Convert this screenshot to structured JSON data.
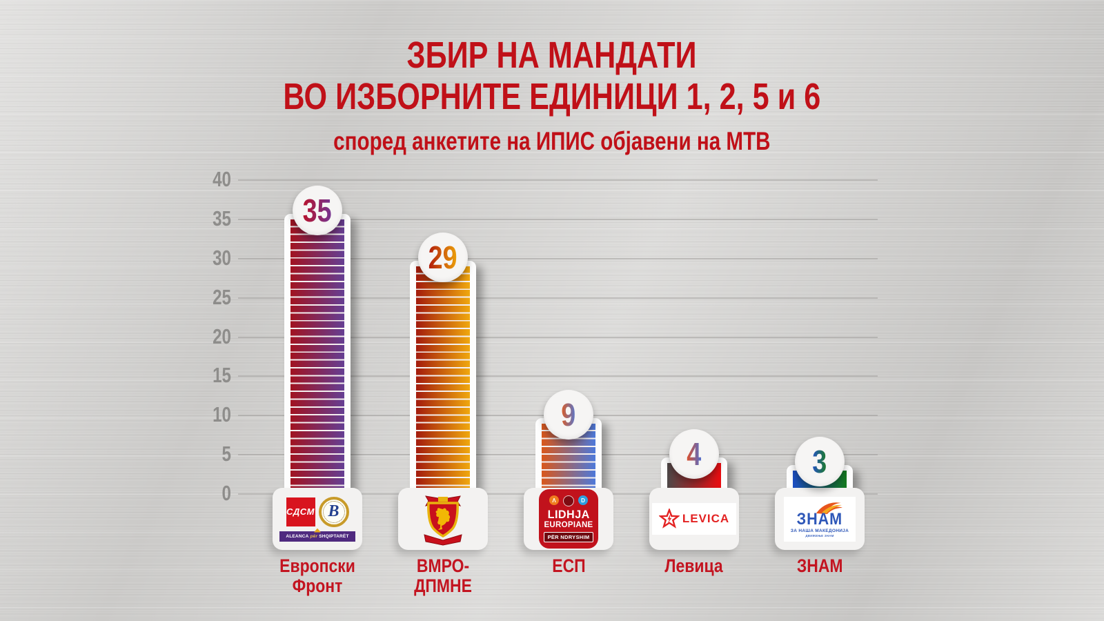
{
  "header": {
    "title_line1": "ЗБИР НА МАНДАТИ",
    "title_line2": "ВО ИЗБОРНИТЕ ЕДИНИЦИ 1, 2, 5 и 6",
    "subtitle": "според анкетите на ИПИС објавени на МТВ"
  },
  "axis": {
    "min": 0,
    "max": 40,
    "ticks": [
      40,
      35,
      30,
      25,
      20,
      15,
      10,
      5,
      0
    ]
  },
  "chart_data": {
    "type": "bar",
    "title": "ЗБИР НА МАНДАТИ ВО ИЗБОРНИТЕ ЕДИНИЦИ 1, 2, 5 и 6",
    "subtitle": "според анкетите на ИПИС објавени на МТВ",
    "categories": [
      "Европски Фронт",
      "ВМРО-ДПМНЕ",
      "ЕСП",
      "Левица",
      "ЗНАМ"
    ],
    "values": [
      35,
      29,
      9,
      4,
      3
    ],
    "xlabel": "",
    "ylabel": "",
    "ylim": [
      0,
      40
    ],
    "yticks": [
      0,
      5,
      10,
      15,
      20,
      25,
      30,
      35,
      40
    ],
    "grid": true,
    "legend": false,
    "bar_style": "one horizontal stripe per mandate, horizontal gradient left to right",
    "series_colors": [
      {
        "from": "#a11320",
        "to": "#653e93"
      },
      {
        "from": "#a31b0d",
        "to": "#f0a80e"
      },
      {
        "from": "#d9571b",
        "to": "#4d79da"
      },
      {
        "from": "#4d4848",
        "to": "#ea0c10"
      },
      {
        "from": "#1d4ec4",
        "to": "#157a1e"
      }
    ]
  },
  "bars": [
    {
      "label": "Европски Фронт",
      "value": 35,
      "striped": true,
      "color_from": "#a11320",
      "color_to": "#653e93",
      "badge_from": "#b8122b",
      "badge_to": "#743492"
    },
    {
      "label": "ВМРО-ДПМНЕ",
      "value": 29,
      "striped": true,
      "color_from": "#a31b0d",
      "color_to": "#f0a80e",
      "badge_from": "#b01a0c",
      "badge_to": "#eda20a"
    },
    {
      "label": "ЕСП",
      "value": 9,
      "striped": true,
      "color_from": "#d9571b",
      "color_to": "#4d79da",
      "badge_from": "#dd5c23",
      "badge_to": "#5578d2"
    },
    {
      "label": "Левица",
      "value": 4,
      "striped": false,
      "color_from": "#4d4848",
      "color_to": "#ea0c10",
      "badge_from": "#dd4f2a",
      "badge_to": "#4f6fd0"
    },
    {
      "label": "ЗНАМ",
      "value": 3,
      "striped": false,
      "color_from": "#1d4ec4",
      "color_to": "#157a1e",
      "badge_from": "#2553c4",
      "badge_to": "#1d7d22"
    }
  ],
  "logos": {
    "ef": {
      "sdsm": "СДСМ",
      "besa_initial": "B",
      "aleanca1": "ALEANCA",
      "aleanca2": "për",
      "aleanca3": "SHQIPTARËT"
    },
    "esp": {
      "dot1": "Λ",
      "dot3": "D",
      "line1": "LIDHJA",
      "line2": "EUROPIANE",
      "line3": "PËR NDRYSHIM"
    },
    "levica": {
      "text": "LEVICA"
    },
    "znam": {
      "text": "ЗНАМ",
      "sub": "ЗА НАША МАКЕДОНИЈА",
      "sub2": "ДВИЖЕЊЕ ЗНАМ"
    }
  }
}
